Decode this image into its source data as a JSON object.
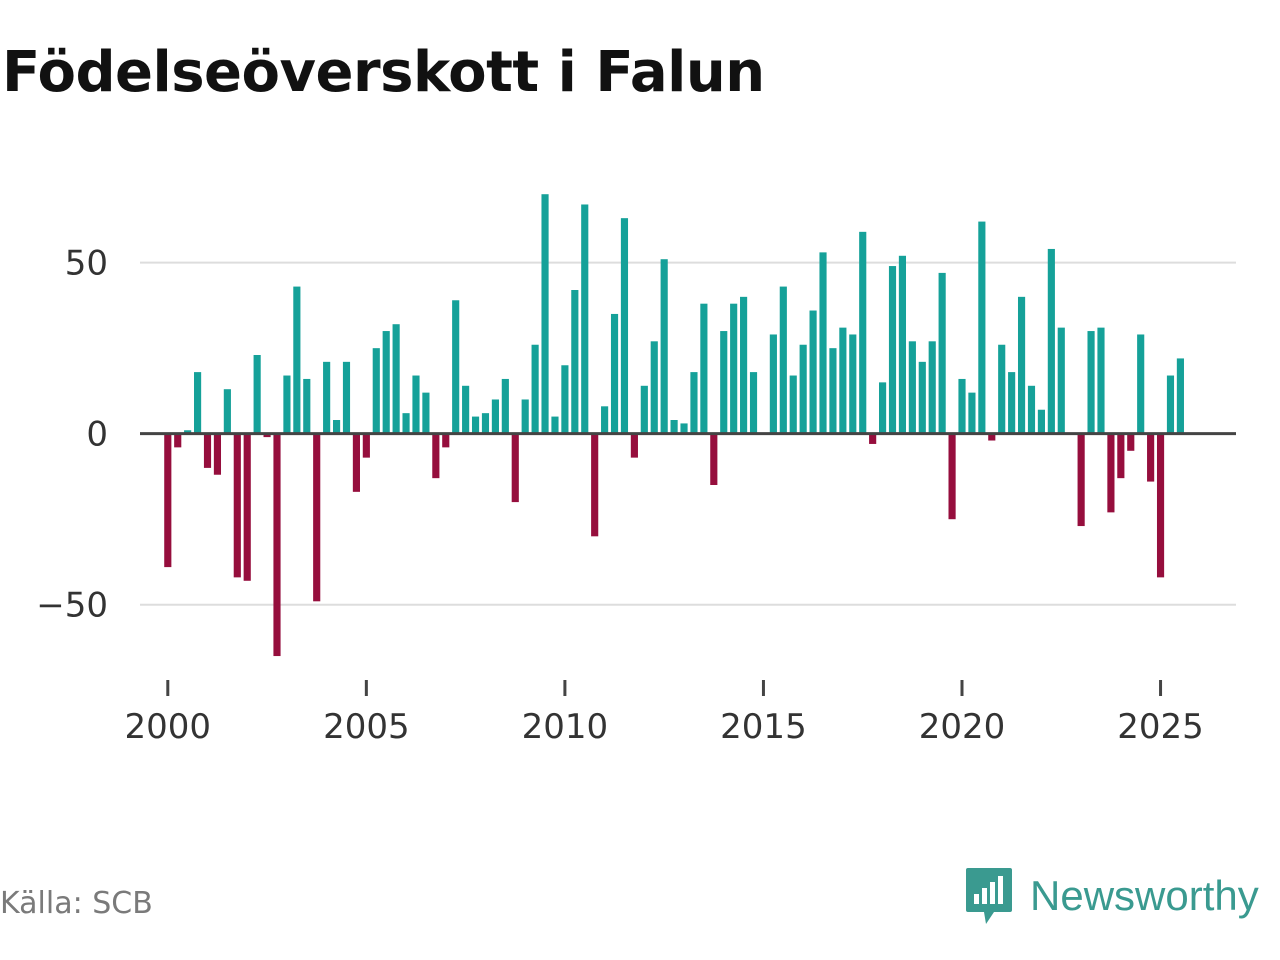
{
  "title": "Födelseöverskott i Falun",
  "source": "Källa: SCB",
  "brand": {
    "name": "Newsworthy",
    "icon": "newsworthy-logo-icon",
    "color": "#3a9a90"
  },
  "colors": {
    "positive": "#15a199",
    "negative": "#960e3d",
    "grid": "#dddddd",
    "zero": "#444444"
  },
  "chart_data": {
    "type": "bar",
    "title": "Födelseöverskott i Falun",
    "xlabel": "",
    "ylabel": "",
    "frequency": "quarterly",
    "x_start": 2000.0,
    "x_step": 0.25,
    "xlim": [
      1999.3,
      2026.9
    ],
    "ylim": [
      -72,
      80
    ],
    "x_ticks": [
      2000,
      2005,
      2010,
      2015,
      2020,
      2025
    ],
    "x_tick_labels": [
      "2000",
      "2005",
      "2010",
      "2015",
      "2020",
      "2025"
    ],
    "y_ticks": [
      50,
      0,
      -50
    ],
    "y_tick_labels": [
      "50",
      "0",
      "−50"
    ],
    "grid": true,
    "values": [
      -39,
      -4,
      1,
      18,
      -10,
      -12,
      13,
      -42,
      -43,
      23,
      -1,
      -65,
      17,
      43,
      16,
      -49,
      21,
      4,
      21,
      -17,
      -7,
      25,
      30,
      32,
      6,
      17,
      12,
      -13,
      -4,
      39,
      14,
      5,
      6,
      10,
      16,
      -20,
      10,
      26,
      70,
      5,
      20,
      42,
      67,
      -30,
      8,
      35,
      63,
      -7,
      14,
      27,
      51,
      4,
      3,
      18,
      38,
      -15,
      30,
      38,
      40,
      18,
      0,
      29,
      43,
      17,
      26,
      36,
      53,
      25,
      31,
      29,
      59,
      -3,
      15,
      49,
      52,
      27,
      21,
      27,
      47,
      -25,
      16,
      12,
      62,
      -2,
      26,
      18,
      40,
      14,
      7,
      54,
      31,
      0,
      -27,
      30,
      31,
      -23,
      -13,
      -5,
      29,
      -14,
      -42,
      17,
      22
    ]
  }
}
